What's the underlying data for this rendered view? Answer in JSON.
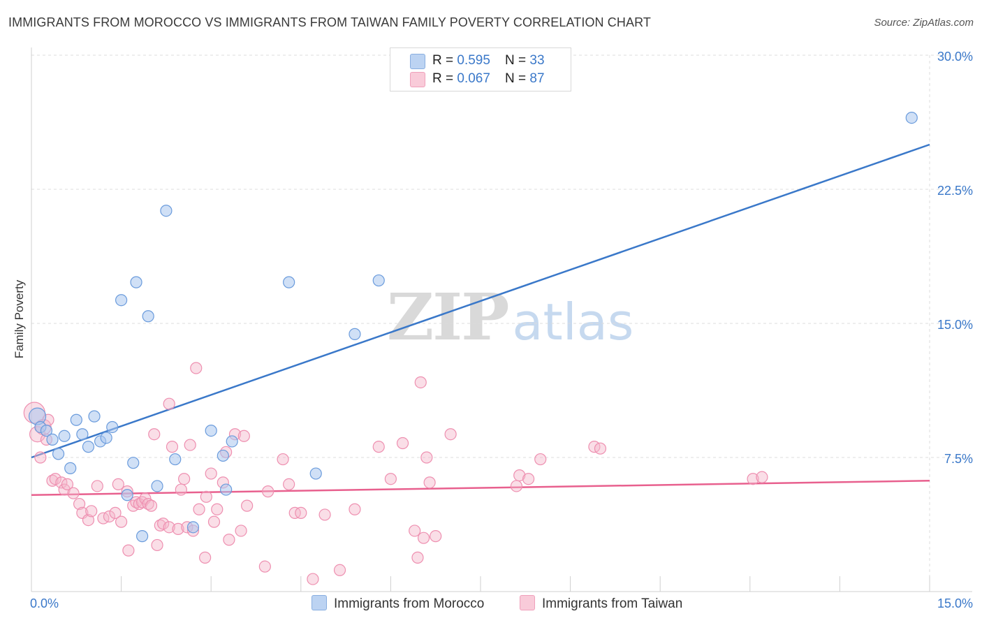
{
  "title": "IMMIGRANTS FROM MOROCCO VS IMMIGRANTS FROM TAIWAN FAMILY POVERTY CORRELATION CHART",
  "source": "Source: ZipAtlas.com",
  "watermark": {
    "zip": "ZIP",
    "atlas": "atlas"
  },
  "colors": {
    "blue": "#3a78c9",
    "blue_fill": "#a9c6ee",
    "pink": "#e8608e",
    "pink_fill": "#f5b6ca"
  },
  "legend_top": {
    "rows": [
      {
        "r_label": "R = ",
        "r_value": "0.595",
        "n_label": "N = ",
        "n_value": "33"
      },
      {
        "r_label": "R = ",
        "r_value": "0.067",
        "n_label": "N = ",
        "n_value": "87"
      }
    ]
  },
  "legend_bottom": {
    "morocco": "Immigrants from Morocco",
    "taiwan": "Immigrants from Taiwan"
  },
  "chart_data": {
    "type": "scatter",
    "title": "IMMIGRANTS FROM MOROCCO VS IMMIGRANTS FROM TAIWAN FAMILY POVERTY CORRELATION CHART",
    "xlabel": "",
    "ylabel": "Family Poverty",
    "xlim": [
      0,
      15
    ],
    "ylim": [
      0,
      30
    ],
    "x_tick_labels": [
      {
        "value": 0,
        "label": "0.0%"
      },
      {
        "value": 15,
        "label": "15.0%"
      }
    ],
    "y_tick_labels": [
      {
        "value": 7.5,
        "label": "7.5%"
      },
      {
        "value": 15,
        "label": "15.0%"
      },
      {
        "value": 22.5,
        "label": "22.5%"
      },
      {
        "value": 30,
        "label": "30.0%"
      }
    ],
    "grid": true,
    "series": [
      {
        "name": "Immigrants from Morocco",
        "color": "#3a78c9",
        "r": 0.595,
        "n": 33,
        "trend": {
          "x": [
            0,
            15
          ],
          "y": [
            7.5,
            25.0
          ]
        },
        "points": [
          [
            0.1,
            9.8
          ],
          [
            0.15,
            9.2
          ],
          [
            0.25,
            9.0
          ],
          [
            0.35,
            8.5
          ],
          [
            0.45,
            7.7
          ],
          [
            0.55,
            8.7
          ],
          [
            0.65,
            6.9
          ],
          [
            0.75,
            9.6
          ],
          [
            0.85,
            8.8
          ],
          [
            0.95,
            8.1
          ],
          [
            1.05,
            9.8
          ],
          [
            1.15,
            8.4
          ],
          [
            1.25,
            8.6
          ],
          [
            1.35,
            9.2
          ],
          [
            1.5,
            16.3
          ],
          [
            1.6,
            5.4
          ],
          [
            1.7,
            7.2
          ],
          [
            1.75,
            17.3
          ],
          [
            1.85,
            3.1
          ],
          [
            1.95,
            15.4
          ],
          [
            2.1,
            5.9
          ],
          [
            2.25,
            21.3
          ],
          [
            2.4,
            7.4
          ],
          [
            2.7,
            3.6
          ],
          [
            3.0,
            9.0
          ],
          [
            3.2,
            7.6
          ],
          [
            3.25,
            5.7
          ],
          [
            3.35,
            8.4
          ],
          [
            4.3,
            17.3
          ],
          [
            4.75,
            6.6
          ],
          [
            5.4,
            14.4
          ],
          [
            5.8,
            17.4
          ],
          [
            14.7,
            26.5
          ]
        ]
      },
      {
        "name": "Immigrants from Taiwan",
        "color": "#e8608e",
        "r": 0.067,
        "n": 87,
        "trend": {
          "x": [
            0,
            15
          ],
          "y": [
            5.4,
            6.2
          ]
        },
        "points": [
          [
            0.05,
            10.0
          ],
          [
            0.1,
            8.8
          ],
          [
            0.15,
            7.5
          ],
          [
            0.2,
            9.2
          ],
          [
            0.25,
            8.5
          ],
          [
            0.28,
            9.6
          ],
          [
            0.35,
            6.2
          ],
          [
            0.4,
            6.3
          ],
          [
            0.5,
            6.1
          ],
          [
            0.55,
            5.7
          ],
          [
            0.6,
            6.0
          ],
          [
            0.7,
            5.5
          ],
          [
            0.8,
            4.9
          ],
          [
            0.85,
            4.4
          ],
          [
            0.95,
            4.0
          ],
          [
            1.0,
            4.5
          ],
          [
            1.1,
            5.9
          ],
          [
            1.2,
            4.1
          ],
          [
            1.3,
            4.2
          ],
          [
            1.4,
            4.4
          ],
          [
            1.45,
            6.0
          ],
          [
            1.5,
            3.9
          ],
          [
            1.6,
            5.6
          ],
          [
            1.62,
            2.3
          ],
          [
            1.7,
            4.8
          ],
          [
            1.75,
            5.0
          ],
          [
            1.8,
            4.9
          ],
          [
            1.85,
            5.0
          ],
          [
            1.9,
            5.2
          ],
          [
            1.95,
            4.9
          ],
          [
            2.0,
            4.8
          ],
          [
            2.05,
            8.8
          ],
          [
            2.1,
            2.6
          ],
          [
            2.15,
            3.7
          ],
          [
            2.2,
            3.8
          ],
          [
            2.3,
            3.6
          ],
          [
            2.3,
            10.5
          ],
          [
            2.35,
            8.1
          ],
          [
            2.45,
            3.5
          ],
          [
            2.5,
            5.7
          ],
          [
            2.55,
            6.3
          ],
          [
            2.6,
            3.6
          ],
          [
            2.65,
            8.2
          ],
          [
            2.7,
            3.4
          ],
          [
            2.75,
            12.5
          ],
          [
            2.8,
            4.6
          ],
          [
            2.9,
            1.9
          ],
          [
            2.92,
            5.3
          ],
          [
            3.0,
            6.6
          ],
          [
            3.05,
            3.9
          ],
          [
            3.1,
            4.6
          ],
          [
            3.2,
            6.1
          ],
          [
            3.25,
            7.8
          ],
          [
            3.3,
            2.9
          ],
          [
            3.4,
            8.8
          ],
          [
            3.5,
            3.4
          ],
          [
            3.55,
            8.7
          ],
          [
            3.6,
            4.8
          ],
          [
            3.9,
            1.4
          ],
          [
            3.95,
            5.6
          ],
          [
            4.2,
            7.4
          ],
          [
            4.3,
            6.0
          ],
          [
            4.4,
            4.4
          ],
          [
            4.5,
            4.4
          ],
          [
            4.7,
            0.7
          ],
          [
            4.9,
            4.3
          ],
          [
            5.15,
            1.2
          ],
          [
            5.4,
            4.6
          ],
          [
            5.8,
            8.1
          ],
          [
            6.0,
            6.3
          ],
          [
            6.2,
            8.3
          ],
          [
            6.4,
            3.4
          ],
          [
            6.45,
            1.9
          ],
          [
            6.5,
            11.7
          ],
          [
            6.55,
            3.0
          ],
          [
            6.6,
            7.5
          ],
          [
            6.65,
            6.1
          ],
          [
            6.75,
            3.1
          ],
          [
            7.0,
            8.8
          ],
          [
            8.1,
            5.9
          ],
          [
            8.15,
            6.5
          ],
          [
            8.3,
            6.3
          ],
          [
            8.5,
            7.4
          ],
          [
            9.4,
            8.1
          ],
          [
            9.5,
            8.0
          ],
          [
            12.05,
            6.3
          ],
          [
            12.2,
            6.4
          ]
        ]
      }
    ]
  }
}
